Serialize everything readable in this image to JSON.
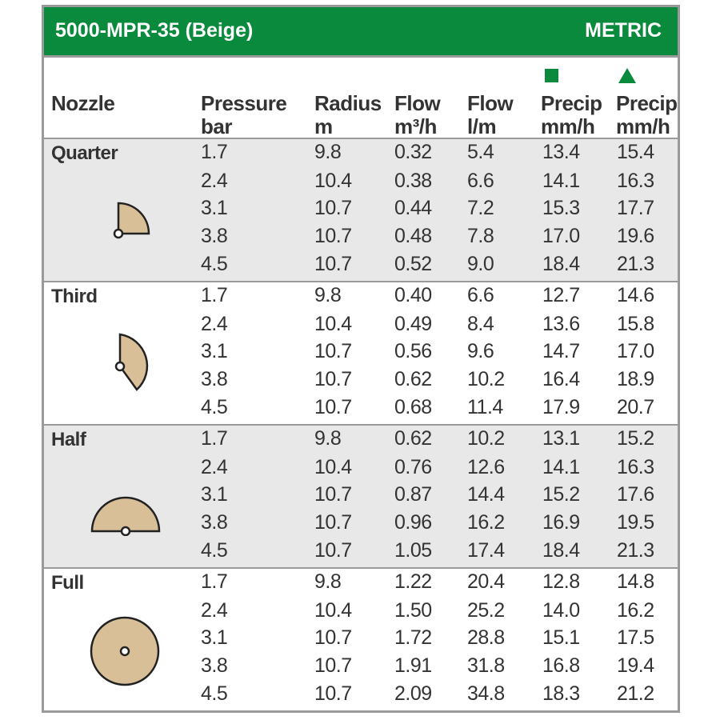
{
  "header": {
    "title": "5000-MPR-35 (Beige)",
    "units": "METRIC"
  },
  "columns": {
    "nozzle": "Nozzle",
    "pressure": [
      "Pressure",
      "bar"
    ],
    "radius": [
      "Radius",
      "m"
    ],
    "flow_m3h": [
      "Flow",
      "m³/h"
    ],
    "flow_lm": [
      "Flow",
      "l/m"
    ],
    "precip_square": [
      "Precip",
      "mm/h"
    ],
    "precip_triangle": [
      "Precip",
      "mm/h"
    ],
    "square_icon": "square-symbol",
    "triangle_icon": "triangle-symbol"
  },
  "colors": {
    "banner": "#0a8a3c",
    "shade": "#e8e8e8",
    "arc_fill": "#d9bf98"
  },
  "groups": [
    {
      "name": "Quarter",
      "icon": "quarter-arc-icon",
      "rows": [
        [
          "1.7",
          "9.8",
          "0.32",
          "5.4",
          "13.4",
          "15.4"
        ],
        [
          "2.4",
          "10.4",
          "0.38",
          "6.6",
          "14.1",
          "16.3"
        ],
        [
          "3.1",
          "10.7",
          "0.44",
          "7.2",
          "15.3",
          "17.7"
        ],
        [
          "3.8",
          "10.7",
          "0.48",
          "7.8",
          "17.0",
          "19.6"
        ],
        [
          "4.5",
          "10.7",
          "0.52",
          "9.0",
          "18.4",
          "21.3"
        ]
      ]
    },
    {
      "name": "Third",
      "icon": "third-arc-icon",
      "rows": [
        [
          "1.7",
          "9.8",
          "0.40",
          "6.6",
          "12.7",
          "14.6"
        ],
        [
          "2.4",
          "10.4",
          "0.49",
          "8.4",
          "13.6",
          "15.8"
        ],
        [
          "3.1",
          "10.7",
          "0.56",
          "9.6",
          "14.7",
          "17.0"
        ],
        [
          "3.8",
          "10.7",
          "0.62",
          "10.2",
          "16.4",
          "18.9"
        ],
        [
          "4.5",
          "10.7",
          "0.68",
          "11.4",
          "17.9",
          "20.7"
        ]
      ]
    },
    {
      "name": "Half",
      "icon": "half-arc-icon",
      "rows": [
        [
          "1.7",
          "9.8",
          "0.62",
          "10.2",
          "13.1",
          "15.2"
        ],
        [
          "2.4",
          "10.4",
          "0.76",
          "12.6",
          "14.1",
          "16.3"
        ],
        [
          "3.1",
          "10.7",
          "0.87",
          "14.4",
          "15.2",
          "17.6"
        ],
        [
          "3.8",
          "10.7",
          "0.96",
          "16.2",
          "16.9",
          "19.5"
        ],
        [
          "4.5",
          "10.7",
          "1.05",
          "17.4",
          "18.4",
          "21.3"
        ]
      ]
    },
    {
      "name": "Full",
      "icon": "full-circle-icon",
      "rows": [
        [
          "1.7",
          "9.8",
          "1.22",
          "20.4",
          "12.8",
          "14.8"
        ],
        [
          "2.4",
          "10.4",
          "1.50",
          "25.2",
          "14.0",
          "16.2"
        ],
        [
          "3.1",
          "10.7",
          "1.72",
          "28.8",
          "15.1",
          "17.5"
        ],
        [
          "3.8",
          "10.7",
          "1.91",
          "31.8",
          "16.8",
          "19.4"
        ],
        [
          "4.5",
          "10.7",
          "2.09",
          "34.8",
          "18.3",
          "21.2"
        ]
      ]
    }
  ]
}
